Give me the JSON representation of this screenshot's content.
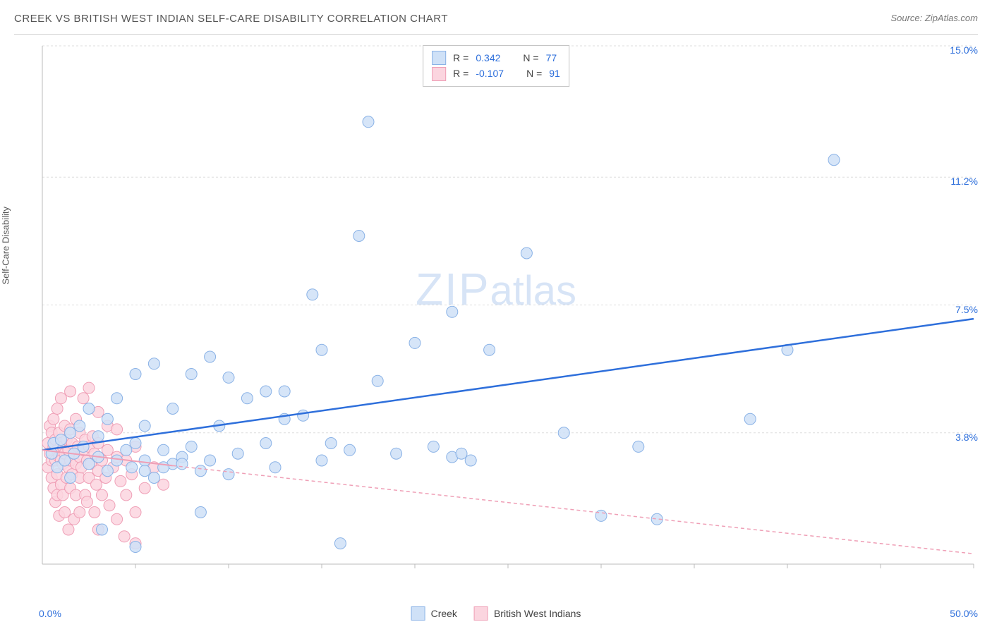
{
  "title": "CREEK VS BRITISH WEST INDIAN SELF-CARE DISABILITY CORRELATION CHART",
  "source_label": "Source: ",
  "source_name": "ZipAtlas.com",
  "ylabel": "Self-Care Disability",
  "watermark_big": "ZIP",
  "watermark_small": "atlas",
  "chart": {
    "type": "scatter",
    "xlim": [
      0,
      50
    ],
    "ylim": [
      0,
      15
    ],
    "x_tick_step": 5,
    "y_gridlines": [
      3.8,
      7.5,
      11.2,
      15.0
    ],
    "x_origin_label": "0.0%",
    "x_max_label": "50.0%",
    "y_labels": [
      "3.8%",
      "7.5%",
      "11.2%",
      "15.0%"
    ],
    "plot_bg": "#ffffff",
    "grid_color": "#dddddd",
    "axis_color": "#bbbbbb",
    "label_color_primary": "#2e6fdb",
    "series": [
      {
        "name": "Creek",
        "marker_fill": "#cfe1f7",
        "marker_stroke": "#8ab2e6",
        "marker_radius": 8,
        "trend_color": "#2e6fdb",
        "trend_width": 2.5,
        "trend_dash": "none",
        "trend_start": [
          0,
          3.3
        ],
        "trend_end": [
          50,
          7.1
        ],
        "trend_extrap_end": [
          50,
          7.1
        ],
        "R": "0.342",
        "N": "77",
        "points": [
          [
            0.5,
            3.2
          ],
          [
            0.6,
            3.5
          ],
          [
            0.8,
            2.8
          ],
          [
            1.0,
            3.6
          ],
          [
            1.2,
            3.0
          ],
          [
            1.5,
            2.5
          ],
          [
            1.5,
            3.8
          ],
          [
            1.7,
            3.2
          ],
          [
            2.0,
            4.0
          ],
          [
            2.2,
            3.4
          ],
          [
            2.5,
            2.9
          ],
          [
            2.5,
            4.5
          ],
          [
            3.0,
            3.1
          ],
          [
            3.0,
            3.7
          ],
          [
            3.2,
            1.0
          ],
          [
            3.5,
            2.7
          ],
          [
            3.5,
            4.2
          ],
          [
            4.0,
            3.0
          ],
          [
            4.0,
            4.8
          ],
          [
            4.5,
            3.3
          ],
          [
            4.8,
            2.8
          ],
          [
            5.0,
            0.5
          ],
          [
            5.0,
            3.5
          ],
          [
            5.0,
            5.5
          ],
          [
            5.5,
            3.0
          ],
          [
            5.5,
            4.0
          ],
          [
            6.0,
            2.5
          ],
          [
            6.0,
            5.8
          ],
          [
            6.5,
            3.3
          ],
          [
            7.0,
            2.9
          ],
          [
            7.0,
            4.5
          ],
          [
            7.5,
            3.1
          ],
          [
            8.0,
            3.4
          ],
          [
            8.0,
            5.5
          ],
          [
            8.5,
            1.5
          ],
          [
            9.0,
            3.0
          ],
          [
            9.0,
            6.0
          ],
          [
            9.5,
            4.0
          ],
          [
            10.0,
            2.6
          ],
          [
            10.0,
            5.4
          ],
          [
            10.5,
            3.2
          ],
          [
            11.0,
            4.8
          ],
          [
            12.0,
            3.5
          ],
          [
            12.0,
            5.0
          ],
          [
            12.5,
            2.8
          ],
          [
            13.0,
            4.2
          ],
          [
            13.0,
            5.0
          ],
          [
            14.0,
            4.3
          ],
          [
            14.5,
            7.8
          ],
          [
            15.0,
            3.0
          ],
          [
            15.0,
            6.2
          ],
          [
            15.5,
            3.5
          ],
          [
            16.0,
            0.6
          ],
          [
            16.5,
            3.3
          ],
          [
            17.0,
            9.5
          ],
          [
            17.5,
            12.8
          ],
          [
            18.0,
            5.3
          ],
          [
            19.0,
            3.2
          ],
          [
            20.0,
            6.4
          ],
          [
            21.0,
            3.4
          ],
          [
            22.0,
            3.1
          ],
          [
            22.0,
            7.3
          ],
          [
            22.5,
            3.2
          ],
          [
            23.0,
            3.0
          ],
          [
            24.0,
            6.2
          ],
          [
            26.0,
            9.0
          ],
          [
            28.0,
            3.8
          ],
          [
            30.0,
            1.4
          ],
          [
            32.0,
            3.4
          ],
          [
            33.0,
            1.3
          ],
          [
            38.0,
            4.2
          ],
          [
            40.0,
            6.2
          ],
          [
            42.5,
            11.7
          ],
          [
            5.5,
            2.7
          ],
          [
            6.5,
            2.8
          ],
          [
            7.5,
            2.9
          ],
          [
            8.5,
            2.7
          ]
        ]
      },
      {
        "name": "British West Indians",
        "marker_fill": "#fbd5df",
        "marker_stroke": "#ef9fb6",
        "marker_radius": 8,
        "trend_color": "#ef9fb6",
        "trend_width": 2,
        "trend_dash": "5,4",
        "trend_start": [
          0,
          3.3
        ],
        "trend_end": [
          7,
          2.85
        ],
        "trend_extrap_end": [
          50,
          0.3
        ],
        "R": "-0.107",
        "N": "91",
        "points": [
          [
            0.3,
            2.8
          ],
          [
            0.3,
            3.5
          ],
          [
            0.4,
            3.2
          ],
          [
            0.4,
            4.0
          ],
          [
            0.5,
            2.5
          ],
          [
            0.5,
            3.0
          ],
          [
            0.5,
            3.8
          ],
          [
            0.6,
            2.2
          ],
          [
            0.6,
            3.4
          ],
          [
            0.6,
            4.2
          ],
          [
            0.7,
            1.8
          ],
          [
            0.7,
            3.0
          ],
          [
            0.7,
            3.6
          ],
          [
            0.8,
            2.0
          ],
          [
            0.8,
            2.6
          ],
          [
            0.8,
            3.3
          ],
          [
            0.8,
            4.5
          ],
          [
            0.9,
            1.4
          ],
          [
            0.9,
            3.1
          ],
          [
            0.9,
            3.8
          ],
          [
            1.0,
            2.3
          ],
          [
            1.0,
            3.0
          ],
          [
            1.0,
            3.5
          ],
          [
            1.0,
            4.8
          ],
          [
            1.1,
            2.0
          ],
          [
            1.1,
            2.9
          ],
          [
            1.1,
            3.4
          ],
          [
            1.2,
            1.5
          ],
          [
            1.2,
            3.2
          ],
          [
            1.2,
            4.0
          ],
          [
            1.3,
            2.5
          ],
          [
            1.3,
            3.6
          ],
          [
            1.4,
            1.0
          ],
          [
            1.4,
            2.8
          ],
          [
            1.4,
            3.3
          ],
          [
            1.5,
            2.2
          ],
          [
            1.5,
            3.0
          ],
          [
            1.5,
            3.9
          ],
          [
            1.5,
            5.0
          ],
          [
            1.6,
            2.6
          ],
          [
            1.6,
            3.5
          ],
          [
            1.7,
            1.3
          ],
          [
            1.7,
            3.2
          ],
          [
            1.8,
            2.0
          ],
          [
            1.8,
            2.9
          ],
          [
            1.8,
            4.2
          ],
          [
            1.9,
            3.4
          ],
          [
            2.0,
            1.5
          ],
          [
            2.0,
            2.5
          ],
          [
            2.0,
            3.1
          ],
          [
            2.0,
            3.8
          ],
          [
            2.1,
            2.8
          ],
          [
            2.2,
            3.3
          ],
          [
            2.2,
            4.8
          ],
          [
            2.3,
            2.0
          ],
          [
            2.3,
            3.6
          ],
          [
            2.4,
            1.8
          ],
          [
            2.4,
            3.0
          ],
          [
            2.5,
            2.5
          ],
          [
            2.5,
            3.4
          ],
          [
            2.5,
            5.1
          ],
          [
            2.6,
            2.9
          ],
          [
            2.7,
            3.7
          ],
          [
            2.8,
            1.5
          ],
          [
            2.8,
            3.2
          ],
          [
            2.9,
            2.3
          ],
          [
            3.0,
            1.0
          ],
          [
            3.0,
            2.7
          ],
          [
            3.0,
            3.5
          ],
          [
            3.0,
            4.4
          ],
          [
            3.2,
            2.0
          ],
          [
            3.2,
            3.0
          ],
          [
            3.4,
            2.5
          ],
          [
            3.5,
            3.3
          ],
          [
            3.5,
            4.0
          ],
          [
            3.6,
            1.7
          ],
          [
            3.8,
            2.8
          ],
          [
            4.0,
            1.3
          ],
          [
            4.0,
            3.1
          ],
          [
            4.0,
            3.9
          ],
          [
            4.2,
            2.4
          ],
          [
            4.4,
            0.8
          ],
          [
            4.5,
            2.0
          ],
          [
            4.5,
            3.0
          ],
          [
            4.8,
            2.6
          ],
          [
            5.0,
            1.5
          ],
          [
            5.0,
            3.4
          ],
          [
            5.0,
            0.6
          ],
          [
            5.5,
            2.2
          ],
          [
            6.0,
            2.8
          ],
          [
            6.5,
            2.3
          ]
        ]
      }
    ]
  },
  "legend_top": {
    "R_label": "R = ",
    "N_label": "N = "
  },
  "legend_bottom_labels": [
    "Creek",
    "British West Indians"
  ]
}
